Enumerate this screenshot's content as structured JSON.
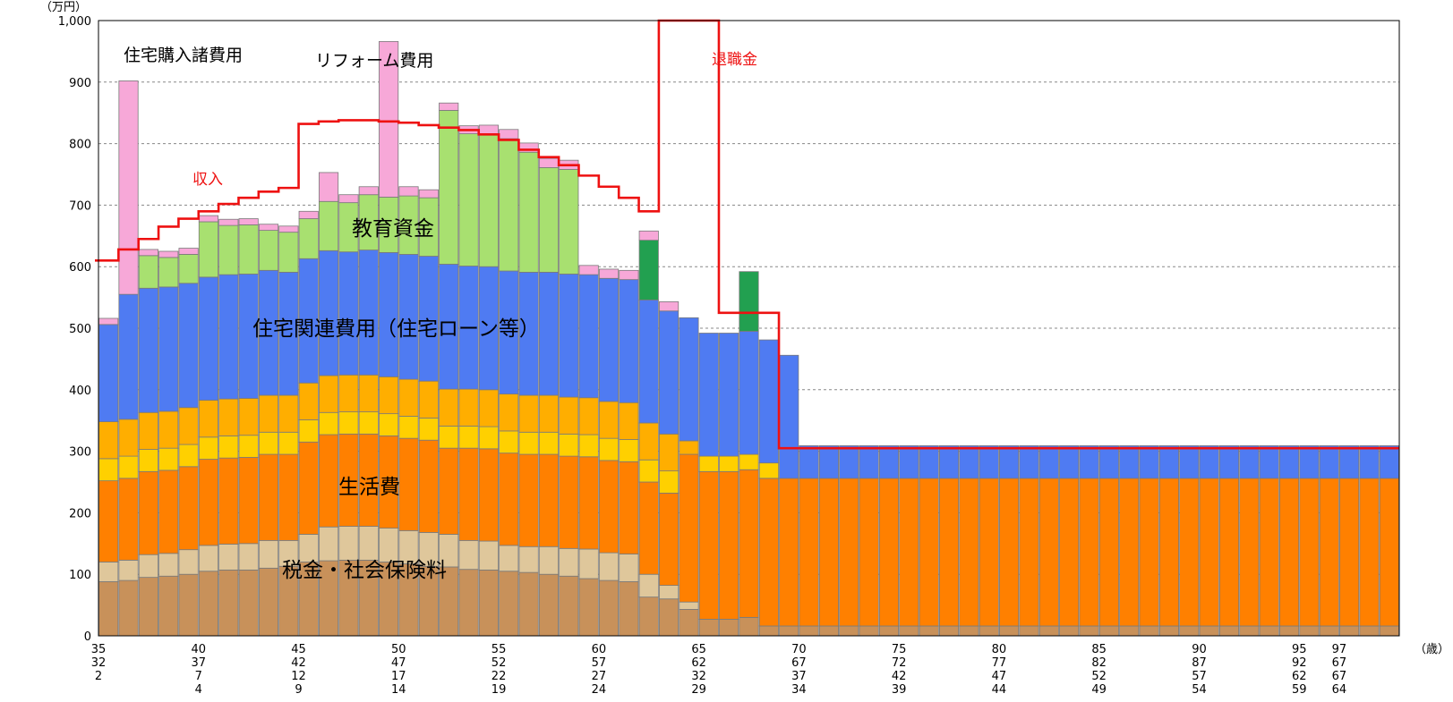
{
  "chart_data": {
    "type": "bar",
    "stacked": true,
    "y_unit_label": "（万円）",
    "x_unit_label": "（歳）",
    "ylim": [
      0,
      1000
    ],
    "yticks": [
      "0",
      "100",
      "200",
      "300",
      "400",
      "500",
      "600",
      "700",
      "800",
      "900",
      "1,000"
    ],
    "grid": "horizontal-dashed",
    "start_age": 35,
    "x_tick_rows": [
      [
        "35",
        "40",
        "45",
        "50",
        "55",
        "60",
        "65",
        "70",
        "75",
        "80",
        "85",
        "90",
        "95",
        "97"
      ],
      [
        "32",
        "37",
        "42",
        "47",
        "52",
        "57",
        "62",
        "67",
        "72",
        "77",
        "82",
        "87",
        "92",
        "67"
      ],
      [
        "2",
        "7",
        "12",
        "17",
        "22",
        "27",
        "32",
        "37",
        "42",
        "47",
        "52",
        "57",
        "62",
        "67"
      ],
      [
        "",
        "4",
        "9",
        "14",
        "19",
        "24",
        "29",
        "34",
        "39",
        "44",
        "49",
        "54",
        "59",
        "64"
      ]
    ],
    "series": [
      {
        "key": "tax",
        "color": "#c8915a",
        "values": [
          88,
          90,
          95,
          97,
          100,
          105,
          107,
          107,
          110,
          113,
          120,
          122,
          123,
          123,
          120,
          117,
          113,
          112,
          108,
          107,
          105,
          103,
          100,
          97,
          93,
          90,
          88,
          63,
          60,
          43,
          27,
          27,
          30,
          16,
          16,
          16,
          16,
          16,
          16,
          16,
          16,
          16,
          16,
          16,
          16,
          16,
          16,
          16,
          16,
          16,
          16,
          16,
          16,
          16,
          16,
          16,
          16,
          16,
          16,
          16,
          16,
          16,
          16,
          16,
          16
        ]
      },
      {
        "key": "tax2",
        "color": "#dfc79b",
        "values": [
          32,
          33,
          37,
          37,
          40,
          42,
          42,
          43,
          45,
          42,
          45,
          55,
          55,
          55,
          55,
          54,
          55,
          53,
          47,
          47,
          42,
          42,
          45,
          45,
          48,
          45,
          45,
          37,
          22,
          12,
          0,
          0,
          0,
          0,
          0,
          0,
          0,
          0,
          0,
          0,
          0,
          0,
          0,
          0,
          0,
          0,
          0,
          0,
          0,
          0,
          0,
          0,
          0,
          0,
          0,
          0,
          0,
          0,
          0,
          0,
          0,
          0,
          0,
          0,
          0
        ]
      },
      {
        "key": "living",
        "color": "#ff8000",
        "values": [
          132,
          133,
          135,
          135,
          135,
          140,
          140,
          140,
          140,
          140,
          150,
          150,
          150,
          150,
          150,
          150,
          150,
          140,
          150,
          150,
          150,
          150,
          150,
          150,
          150,
          150,
          150,
          150,
          150,
          240,
          240,
          240,
          240,
          240,
          240,
          240,
          240,
          240,
          240,
          240,
          240,
          240,
          240,
          240,
          240,
          240,
          240,
          240,
          240,
          240,
          240,
          240,
          240,
          240,
          240,
          240,
          240,
          240,
          240,
          240,
          240,
          240,
          240,
          240,
          240
        ]
      },
      {
        "key": "living2",
        "color": "#ffd000",
        "values": [
          36,
          36,
          36,
          36,
          36,
          36,
          36,
          36,
          36,
          36,
          36,
          36,
          36,
          36,
          36,
          36,
          36,
          36,
          36,
          36,
          36,
          36,
          36,
          36,
          36,
          36,
          36,
          36,
          36,
          0,
          25,
          25,
          25,
          25,
          0,
          0,
          0,
          0,
          0,
          0,
          0,
          0,
          0,
          0,
          0,
          0,
          0,
          0,
          0,
          0,
          0,
          0,
          0,
          0,
          0,
          0,
          0,
          0,
          0,
          0,
          0,
          0,
          0,
          0,
          0
        ]
      },
      {
        "key": "living3",
        "color": "#ffae00",
        "values": [
          60,
          60,
          60,
          60,
          60,
          60,
          60,
          60,
          60,
          60,
          60,
          60,
          60,
          60,
          60,
          60,
          60,
          60,
          60,
          60,
          60,
          60,
          60,
          60,
          60,
          60,
          60,
          60,
          60,
          22,
          0,
          0,
          0,
          0,
          0,
          0,
          0,
          0,
          0,
          0,
          0,
          0,
          0,
          0,
          0,
          0,
          0,
          0,
          0,
          0,
          0,
          0,
          0,
          0,
          0,
          0,
          0,
          0,
          0,
          0,
          0,
          0,
          0,
          0,
          0
        ]
      },
      {
        "key": "housing",
        "color": "#4f7bf2",
        "values": [
          158,
          203,
          202,
          202,
          202,
          200,
          202,
          202,
          203,
          200,
          202,
          203,
          200,
          203,
          202,
          203,
          203,
          203,
          200,
          200,
          200,
          200,
          200,
          200,
          200,
          200,
          200,
          200,
          200,
          200,
          200,
          200,
          200,
          200,
          200,
          0,
          0,
          0,
          0,
          0,
          0,
          0,
          0,
          0,
          0,
          0,
          0,
          0,
          0,
          0,
          0,
          0,
          0,
          0,
          0,
          0,
          0,
          0,
          0,
          0,
          0,
          0,
          0,
          0,
          0
        ]
      },
      {
        "key": "housing_old",
        "color": "#4f7bf2",
        "values": [
          0,
          0,
          0,
          0,
          0,
          0,
          0,
          0,
          0,
          0,
          0,
          0,
          0,
          0,
          0,
          0,
          0,
          0,
          0,
          0,
          0,
          0,
          0,
          0,
          0,
          0,
          0,
          0,
          0,
          0,
          0,
          0,
          0,
          0,
          0,
          53,
          53,
          53,
          53,
          53,
          53,
          53,
          53,
          53,
          53,
          53,
          53,
          53,
          53,
          53,
          53,
          53,
          53,
          53,
          53,
          53,
          53,
          53,
          53,
          53,
          53,
          53,
          53,
          53,
          53
        ]
      },
      {
        "key": "education",
        "color": "#a8e070",
        "values": [
          0,
          0,
          53,
          48,
          47,
          90,
          80,
          80,
          65,
          65,
          65,
          80,
          80,
          90,
          90,
          95,
          95,
          250,
          215,
          215,
          215,
          195,
          170,
          170,
          0,
          0,
          0,
          0,
          0,
          0,
          0,
          0,
          0,
          0,
          0,
          0,
          0,
          0,
          0,
          0,
          0,
          0,
          0,
          0,
          0,
          0,
          0,
          0,
          0,
          0,
          0,
          0,
          0,
          0,
          0,
          0,
          0,
          0,
          0,
          0,
          0,
          0,
          0,
          0,
          0
        ]
      },
      {
        "key": "car",
        "color": "#22a050",
        "values": [
          0,
          0,
          0,
          0,
          0,
          0,
          0,
          0,
          0,
          0,
          0,
          0,
          0,
          0,
          0,
          0,
          0,
          0,
          0,
          0,
          0,
          0,
          0,
          0,
          0,
          0,
          0,
          97,
          0,
          0,
          0,
          0,
          97,
          0,
          0,
          0,
          0,
          0,
          0,
          0,
          0,
          0,
          0,
          0,
          0,
          0,
          0,
          0,
          0,
          0,
          0,
          0,
          0,
          0,
          0,
          0,
          0,
          0,
          0,
          0,
          0,
          0,
          0,
          0,
          0
        ]
      },
      {
        "key": "other",
        "color": "#f7a8d8",
        "values": [
          10,
          347,
          10,
          10,
          10,
          10,
          10,
          10,
          10,
          10,
          12,
          47,
          13,
          13,
          253,
          15,
          13,
          12,
          13,
          15,
          15,
          15,
          15,
          15,
          15,
          15,
          15,
          15,
          15,
          0,
          0,
          0,
          0,
          0,
          0,
          0,
          0,
          0,
          0,
          0,
          0,
          0,
          0,
          0,
          0,
          0,
          0,
          0,
          0,
          0,
          0,
          0,
          0,
          0,
          0,
          0,
          0,
          0,
          0,
          0,
          0,
          0,
          0,
          0,
          0
        ]
      }
    ],
    "income": [
      610,
      628,
      645,
      665,
      678,
      690,
      702,
      712,
      722,
      728,
      832,
      836,
      838,
      838,
      836,
      834,
      830,
      826,
      822,
      815,
      806,
      790,
      778,
      765,
      748,
      730,
      712,
      690,
      1005,
      1005,
      1005,
      525,
      525,
      525,
      305,
      305,
      305,
      305,
      305,
      305,
      305,
      305,
      305,
      305,
      305,
      305,
      305,
      305,
      305,
      305,
      305,
      305,
      305,
      305,
      305,
      305,
      305,
      305,
      305,
      305,
      305,
      305,
      305,
      305,
      305
    ],
    "annotations": {
      "purchase": "住宅購入諸費用",
      "reform": "リフォーム費用",
      "income": "収入",
      "retirement": "退職金",
      "education": "教育資金",
      "housing": "住宅関連費用（住宅ローン等）",
      "living": "生活費",
      "tax": "税金・社会保険料"
    }
  }
}
